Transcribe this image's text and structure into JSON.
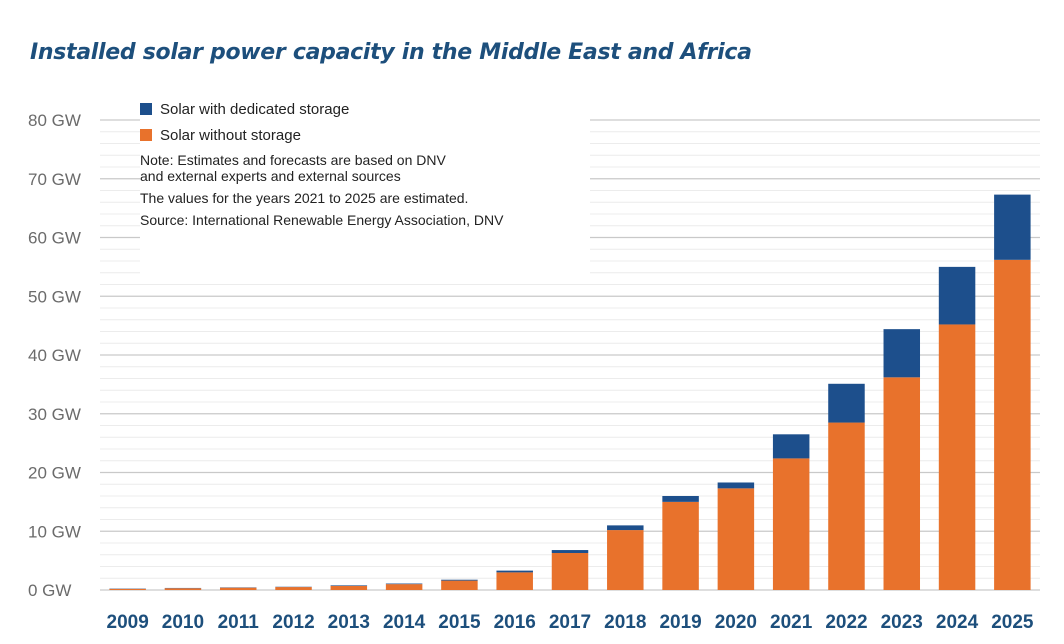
{
  "chart_data": {
    "type": "bar",
    "stacked": true,
    "title": "Installed solar power capacity in the Middle East and Africa",
    "ylim": [
      0,
      80
    ],
    "yticks": [
      "0 GW",
      "10 GW",
      "20 GW",
      "30 GW",
      "40 GW",
      "50 GW",
      "60 GW",
      "70 GW",
      "80 GW"
    ],
    "categories": [
      "2009",
      "2010",
      "2011",
      "2012",
      "2013",
      "2014",
      "2015",
      "2016",
      "2017",
      "2018",
      "2019",
      "2020",
      "2021",
      "2022",
      "2023",
      "2024",
      "2025"
    ],
    "series": [
      {
        "name": "Solar without storage",
        "color": "#e8722c",
        "values": [
          0.2,
          0.3,
          0.4,
          0.5,
          0.7,
          1.0,
          1.6,
          3.0,
          6.3,
          10.2,
          15.0,
          17.3,
          22.4,
          28.5,
          36.2,
          45.2,
          56.2
        ]
      },
      {
        "name": "Solar with dedicated storage",
        "color": "#1d4f8c",
        "values": [
          0.05,
          0.05,
          0.05,
          0.05,
          0.1,
          0.1,
          0.15,
          0.3,
          0.5,
          0.8,
          1.0,
          1.0,
          4.1,
          6.6,
          8.2,
          9.8,
          11.1
        ]
      }
    ],
    "legend": {
      "items": [
        {
          "label": "Solar with dedicated storage",
          "color": "#1d4f8c"
        },
        {
          "label": "Solar without storage",
          "color": "#e8722c"
        }
      ],
      "note1": "Note: Estimates and forecasts are based on DNV",
      "note2": "and external experts and external sources",
      "note3": "The values for the years 2021 to 2025 are estimated.",
      "source": "Source: International Renewable Energy Association, DNV",
      "placement": "top-left"
    },
    "grid": true
  }
}
